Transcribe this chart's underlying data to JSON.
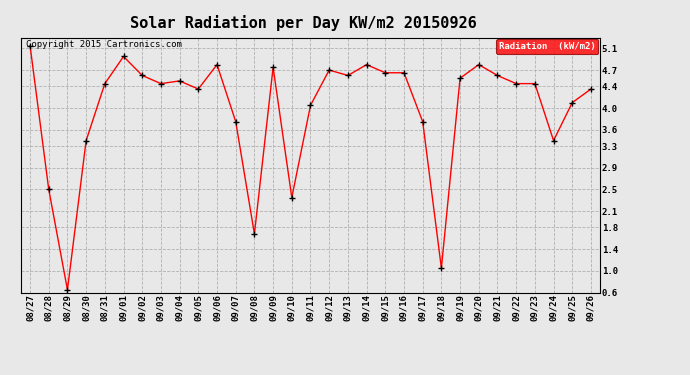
{
  "title": "Solar Radiation per Day KW/m2 20150926",
  "copyright": "Copyright 2015 Cartronics.com",
  "legend_label": "Radiation  (kW/m2)",
  "dates": [
    "08/27",
    "08/28",
    "08/29",
    "08/30",
    "08/31",
    "09/01",
    "09/02",
    "09/03",
    "09/04",
    "09/05",
    "09/06",
    "09/07",
    "09/08",
    "09/09",
    "09/10",
    "09/11",
    "09/12",
    "09/13",
    "09/14",
    "09/15",
    "09/16",
    "09/17",
    "09/18",
    "09/19",
    "09/20",
    "09/21",
    "09/22",
    "09/23",
    "09/24",
    "09/25",
    "09/26"
  ],
  "values": [
    5.15,
    2.5,
    0.65,
    3.4,
    4.45,
    4.95,
    4.6,
    4.45,
    4.5,
    4.35,
    4.8,
    3.75,
    1.68,
    4.75,
    2.35,
    4.05,
    4.7,
    4.6,
    4.8,
    4.65,
    4.65,
    3.75,
    1.05,
    4.55,
    4.8,
    4.6,
    4.45,
    4.45,
    3.4,
    4.1,
    4.35
  ],
  "ylim": [
    0.6,
    5.3
  ],
  "yticks": [
    0.6,
    1.0,
    1.4,
    1.8,
    2.1,
    2.5,
    2.9,
    3.3,
    3.6,
    4.0,
    4.4,
    4.7,
    5.1
  ],
  "line_color": "red",
  "marker_color": "black",
  "bg_color": "#e8e8e8",
  "grid_color": "#b0b0b0",
  "legend_bg": "red",
  "legend_fg": "white",
  "title_fontsize": 11,
  "tick_fontsize": 6.5,
  "copyright_fontsize": 6.5
}
